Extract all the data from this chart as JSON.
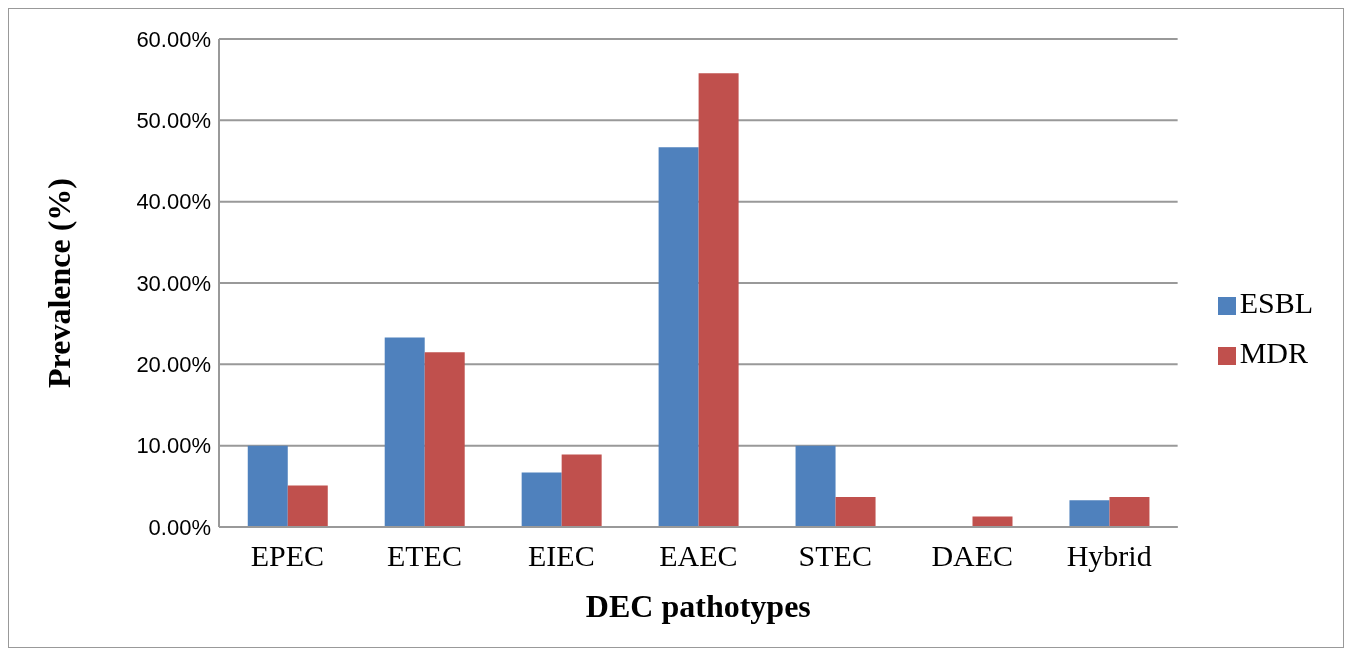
{
  "chart_data": {
    "type": "bar",
    "xlabel": "DEC  pathotypes",
    "ylabel": "Prevalence (%)",
    "categories": [
      "EPEC",
      "ETEC",
      "EIEC",
      "EAEC",
      "STEC",
      "DAEC",
      "Hybrid"
    ],
    "series": [
      {
        "name": "ESBL",
        "color": "#4f81bd",
        "values": [
          10,
          23.3,
          6.7,
          46.7,
          10,
          0,
          3.3
        ]
      },
      {
        "name": "MDR",
        "color": "#c0504d",
        "values": [
          5.1,
          21.5,
          8.9,
          55.8,
          3.7,
          1.3,
          3.7
        ]
      }
    ],
    "ylim": [
      0,
      60
    ],
    "yticks": [
      {
        "value": 0,
        "label": "0.00%"
      },
      {
        "value": 10,
        "label": "10.00%"
      },
      {
        "value": 20,
        "label": "20.00%"
      },
      {
        "value": 30,
        "label": "30.00%"
      },
      {
        "value": 40,
        "label": "40.00%"
      },
      {
        "value": 50,
        "label": "50.00%"
      },
      {
        "value": 60,
        "label": "60.00%"
      }
    ],
    "grid": "y",
    "legend": "right"
  }
}
